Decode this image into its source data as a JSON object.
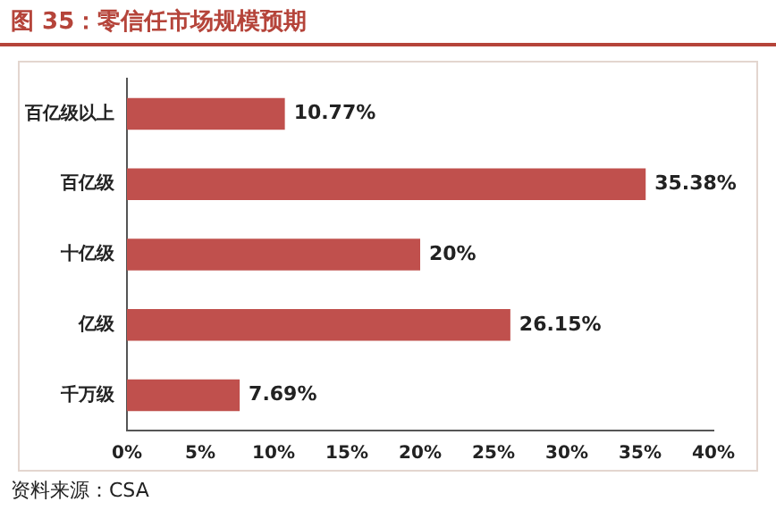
{
  "chart_data": {
    "type": "bar",
    "title": "图 35：零信任市场规模预期",
    "orientation": "horizontal",
    "categories": [
      "百亿级以上",
      "百亿级",
      "十亿级",
      "亿级",
      "千万级"
    ],
    "series": [
      {
        "color": "#c0504d",
        "values": [
          10.77,
          35.38,
          20,
          26.15,
          7.69
        ],
        "value_labels": [
          "10.77%",
          "35.38%",
          "20%",
          "26.15%",
          "7.69%"
        ]
      }
    ],
    "xlim": [
      0,
      40
    ],
    "xticks": [
      {
        "value": 0,
        "label": "0%"
      },
      {
        "value": 5,
        "label": "5%"
      },
      {
        "value": 10,
        "label": "10%"
      },
      {
        "value": 15,
        "label": "15%"
      },
      {
        "value": 20,
        "label": "20%"
      },
      {
        "value": 25,
        "label": "25%"
      },
      {
        "value": 30,
        "label": "30%"
      },
      {
        "value": 35,
        "label": "35%"
      },
      {
        "value": 40,
        "label": "40%"
      }
    ],
    "grid": false,
    "legend": false,
    "annotations": [
      "资料来源：CSA"
    ]
  }
}
